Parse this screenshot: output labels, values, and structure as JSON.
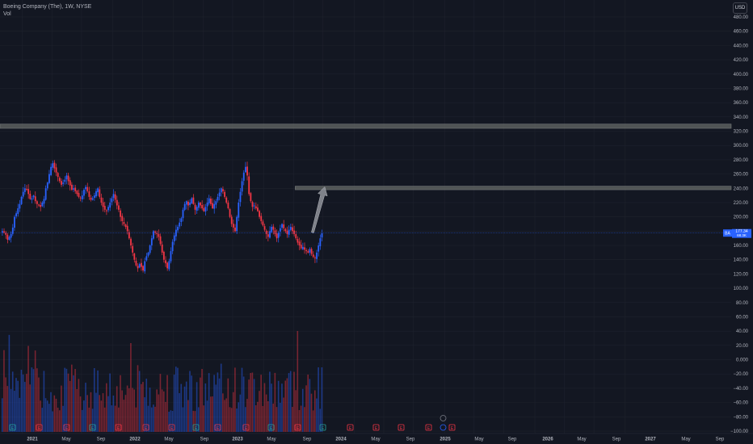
{
  "legend": {
    "title": "Boeing Company (The), 1W, NYSE",
    "vol": "Vol"
  },
  "currency": "USD",
  "price_label": {
    "ticker": "BA",
    "price": "177.34",
    "sub": "68.3K"
  },
  "colors": {
    "up": "#2962ff",
    "down": "#f23645",
    "zone": "#6b6f6b",
    "arrow": "#8a8d95",
    "grid": "#1e222d",
    "bg": "#131722",
    "text": "#b2b5be",
    "crosshair": "#2962ff"
  },
  "chart_data": {
    "type": "candlestick",
    "title": "Boeing Company (The), 1W, NYSE",
    "price_axis": {
      "min": -100,
      "max": 480,
      "ticks": [
        480,
        460,
        440,
        420,
        400,
        380,
        360,
        340,
        320,
        300,
        280,
        260,
        240,
        220,
        200,
        180,
        160,
        140,
        120,
        100,
        80,
        60,
        40,
        20,
        0,
        -20,
        -40,
        -60,
        -80,
        -100
      ],
      "tick_labels": [
        "480.00",
        "460.00",
        "440.00",
        "420.00",
        "400.00",
        "380.00",
        "360.00",
        "340.00",
        "320.00",
        "300.00",
        "280.00",
        "260.00",
        "240.00",
        "220.00",
        "200.00",
        "180.00",
        "160.00",
        "140.00",
        "120.00",
        "100.00",
        "80.00",
        "60.00",
        "40.00",
        "20.00",
        "0.000",
        "−20.00",
        "−40.00",
        "−60.00",
        "−80.00",
        "−100.00"
      ]
    },
    "time_axis": {
      "start": "2020-10-12",
      "labels": [
        {
          "t": "2021",
          "w": 12
        },
        {
          "t": "May",
          "w": 29
        },
        {
          "t": "Sep",
          "w": 46
        },
        {
          "t": "2022",
          "w": 64
        },
        {
          "t": "May",
          "w": 81
        },
        {
          "t": "Sep",
          "w": 99
        },
        {
          "t": "2023",
          "w": 116
        },
        {
          "t": "May",
          "w": 133
        },
        {
          "t": "Sep",
          "w": 151
        },
        {
          "t": "2024",
          "w": 168
        },
        {
          "t": "May",
          "w": 185
        },
        {
          "t": "Sep",
          "w": 203
        },
        {
          "t": "2025",
          "w": 220
        },
        {
          "t": "May",
          "w": 237
        },
        {
          "t": "Sep",
          "w": 255
        },
        {
          "t": "2026",
          "w": 272
        },
        {
          "t": "May",
          "w": 289
        },
        {
          "t": "Sep",
          "w": 307
        },
        {
          "t": "2027",
          "w": 324
        },
        {
          "t": "May",
          "w": 341
        },
        {
          "t": "Sep",
          "w": 359
        }
      ]
    },
    "weekly_close": [
      180,
      178,
      175,
      168,
      172,
      176,
      185,
      200,
      205,
      212,
      218,
      228,
      235,
      240,
      238,
      232,
      225,
      226,
      230,
      222,
      218,
      216,
      214,
      220,
      225,
      240,
      248,
      260,
      270,
      275,
      268,
      262,
      256,
      250,
      245,
      248,
      252,
      258,
      250,
      244,
      238,
      240,
      236,
      232,
      228,
      226,
      230,
      238,
      242,
      236,
      228,
      224,
      226,
      230,
      236,
      240,
      228,
      220,
      214,
      210,
      208,
      214,
      220,
      226,
      232,
      224,
      216,
      210,
      200,
      194,
      190,
      186,
      180,
      170,
      160,
      150,
      140,
      132,
      128,
      134,
      130,
      125,
      138,
      145,
      150,
      160,
      170,
      180,
      178,
      176,
      172,
      162,
      150,
      140,
      135,
      128,
      138,
      152,
      165,
      174,
      182,
      186,
      192,
      198,
      210,
      218,
      222,
      216,
      220,
      226,
      218,
      210,
      214,
      220,
      216,
      212,
      208,
      214,
      220,
      226,
      218,
      212,
      218,
      222,
      228,
      234,
      240,
      236,
      228,
      220,
      212,
      200,
      190,
      185,
      180,
      200,
      220,
      235,
      250,
      262,
      270,
      258,
      232,
      222,
      214,
      216,
      212,
      208,
      200,
      194,
      188,
      182,
      176,
      172,
      180,
      186,
      182,
      176,
      170,
      178,
      184,
      190,
      184,
      180,
      176,
      182,
      186,
      180,
      176,
      170,
      164,
      160,
      156,
      158,
      154,
      152,
      150,
      155,
      148,
      144,
      142,
      150,
      160,
      170,
      177
    ],
    "annotations": [
      {
        "type": "zone",
        "price_low": 324,
        "price_high": 330,
        "from": 0,
        "to": "end"
      },
      {
        "type": "zone",
        "price_low": 238,
        "price_high": 243,
        "from": 169,
        "to": "end"
      },
      {
        "type": "arrow",
        "from_week": 179,
        "from_price": 178,
        "to_week": 186,
        "to_price": 242
      }
    ],
    "last_price": 177.34
  }
}
